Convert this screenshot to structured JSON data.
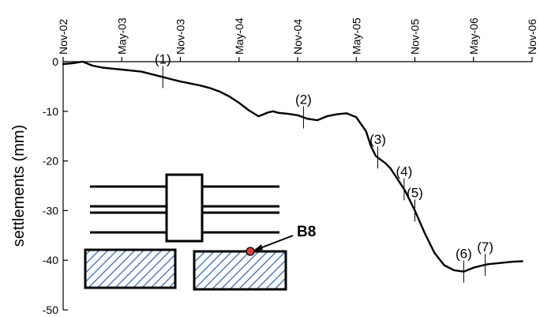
{
  "chart_data": {
    "type": "line",
    "title": "",
    "xlabel": "",
    "ylabel": "settlements (mm)",
    "x_axis_position": "top",
    "x_tick_labels": [
      "Nov-02",
      "May-03",
      "Nov-03",
      "May-04",
      "Nov-04",
      "May-05",
      "Nov-05",
      "May-06",
      "Nov-06"
    ],
    "xlim": [
      0,
      48
    ],
    "ylim": [
      -50,
      0
    ],
    "y_ticks": [
      0,
      -10,
      -20,
      -30,
      -40,
      -50
    ],
    "grid": false,
    "legend": "none",
    "series": [
      {
        "line_color": "#000000",
        "x": [
          0,
          1,
          2,
          3,
          4,
          5,
          6,
          7,
          8,
          9,
          10,
          11,
          12,
          13,
          14,
          15,
          16,
          17,
          18,
          19,
          20,
          21,
          21.5,
          22,
          23,
          24,
          25,
          26,
          27,
          28,
          29,
          30,
          31,
          31.5,
          32,
          33,
          33.5,
          34,
          35,
          36,
          37,
          38,
          39,
          40,
          41,
          42,
          43,
          43.5,
          44,
          45,
          46,
          47
        ],
        "y": [
          -0.5,
          -0.3,
          0,
          -0.8,
          -1.2,
          -1.4,
          -1.6,
          -1.8,
          -2.0,
          -2.5,
          -3.0,
          -3.5,
          -4.0,
          -4.4,
          -4.8,
          -5.3,
          -6.0,
          -7.0,
          -8.3,
          -9.8,
          -11.0,
          -10.2,
          -10.0,
          -10.3,
          -10.5,
          -10.8,
          -11.5,
          -11.8,
          -11.0,
          -10.6,
          -10.4,
          -11.2,
          -14.0,
          -17.0,
          -19.0,
          -20.5,
          -21.5,
          -23.0,
          -26.0,
          -30.0,
          -34.5,
          -38.5,
          -41.0,
          -42.0,
          -42.3,
          -41.5,
          -41.0,
          -40.8,
          -40.7,
          -40.5,
          -40.3,
          -40.2
        ]
      }
    ],
    "annotations": [
      {
        "label": "(1)",
        "x": 10.2
      },
      {
        "label": "(2)",
        "x": 24.6
      },
      {
        "label": "(3)",
        "x": 32.2
      },
      {
        "label": "(4)",
        "x": 34.9
      },
      {
        "label": "(5)",
        "x": 36.0
      },
      {
        "label": "(6)",
        "x": 41.0
      },
      {
        "label": "(7)",
        "x": 43.2
      }
    ],
    "inset": {
      "point_label": "B8",
      "point_color": "#e23b3b",
      "hatch_color": "#3a6bc0"
    }
  }
}
